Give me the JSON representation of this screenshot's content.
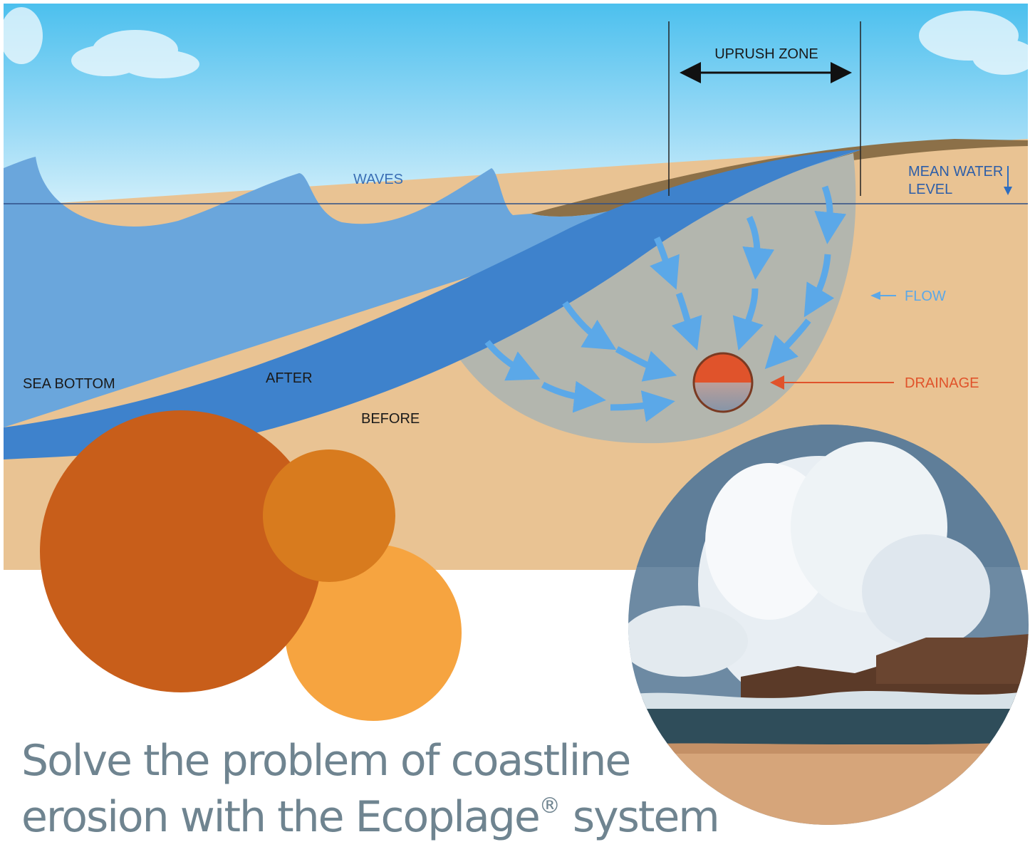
{
  "diagram": {
    "labels": {
      "uprush_zone": "UPRUSH ZONE",
      "waves": "WAVES",
      "mean_water_level_line1": "MEAN WATER",
      "mean_water_level_line2": "LEVEL",
      "flow": "FLOW",
      "sea_bottom": "SEA BOTTOM",
      "after": "AFTER",
      "before": "BEFORE",
      "drainage": "DRAINAGE"
    },
    "colors": {
      "sky_top": "#4cc0ee",
      "sky_bottom": "#cdeefb",
      "wave_light": "#6aa6dc",
      "wave_dark": "#3e82cc",
      "sand": "#e9c393",
      "sand_dark": "#8c7048",
      "drain_zone": "#b3b6ae",
      "flow_arrow": "#5ba8e8",
      "drainage": "#e0532b"
    }
  },
  "decor": {
    "circle_colors": [
      "#c85e1a",
      "#d87b1e",
      "#f6a440"
    ]
  },
  "headline": {
    "line1": "Solve the problem of coastline",
    "line2_pre": "erosion with the Ecoplage",
    "registered_mark": "®",
    "line2_post": " system"
  }
}
